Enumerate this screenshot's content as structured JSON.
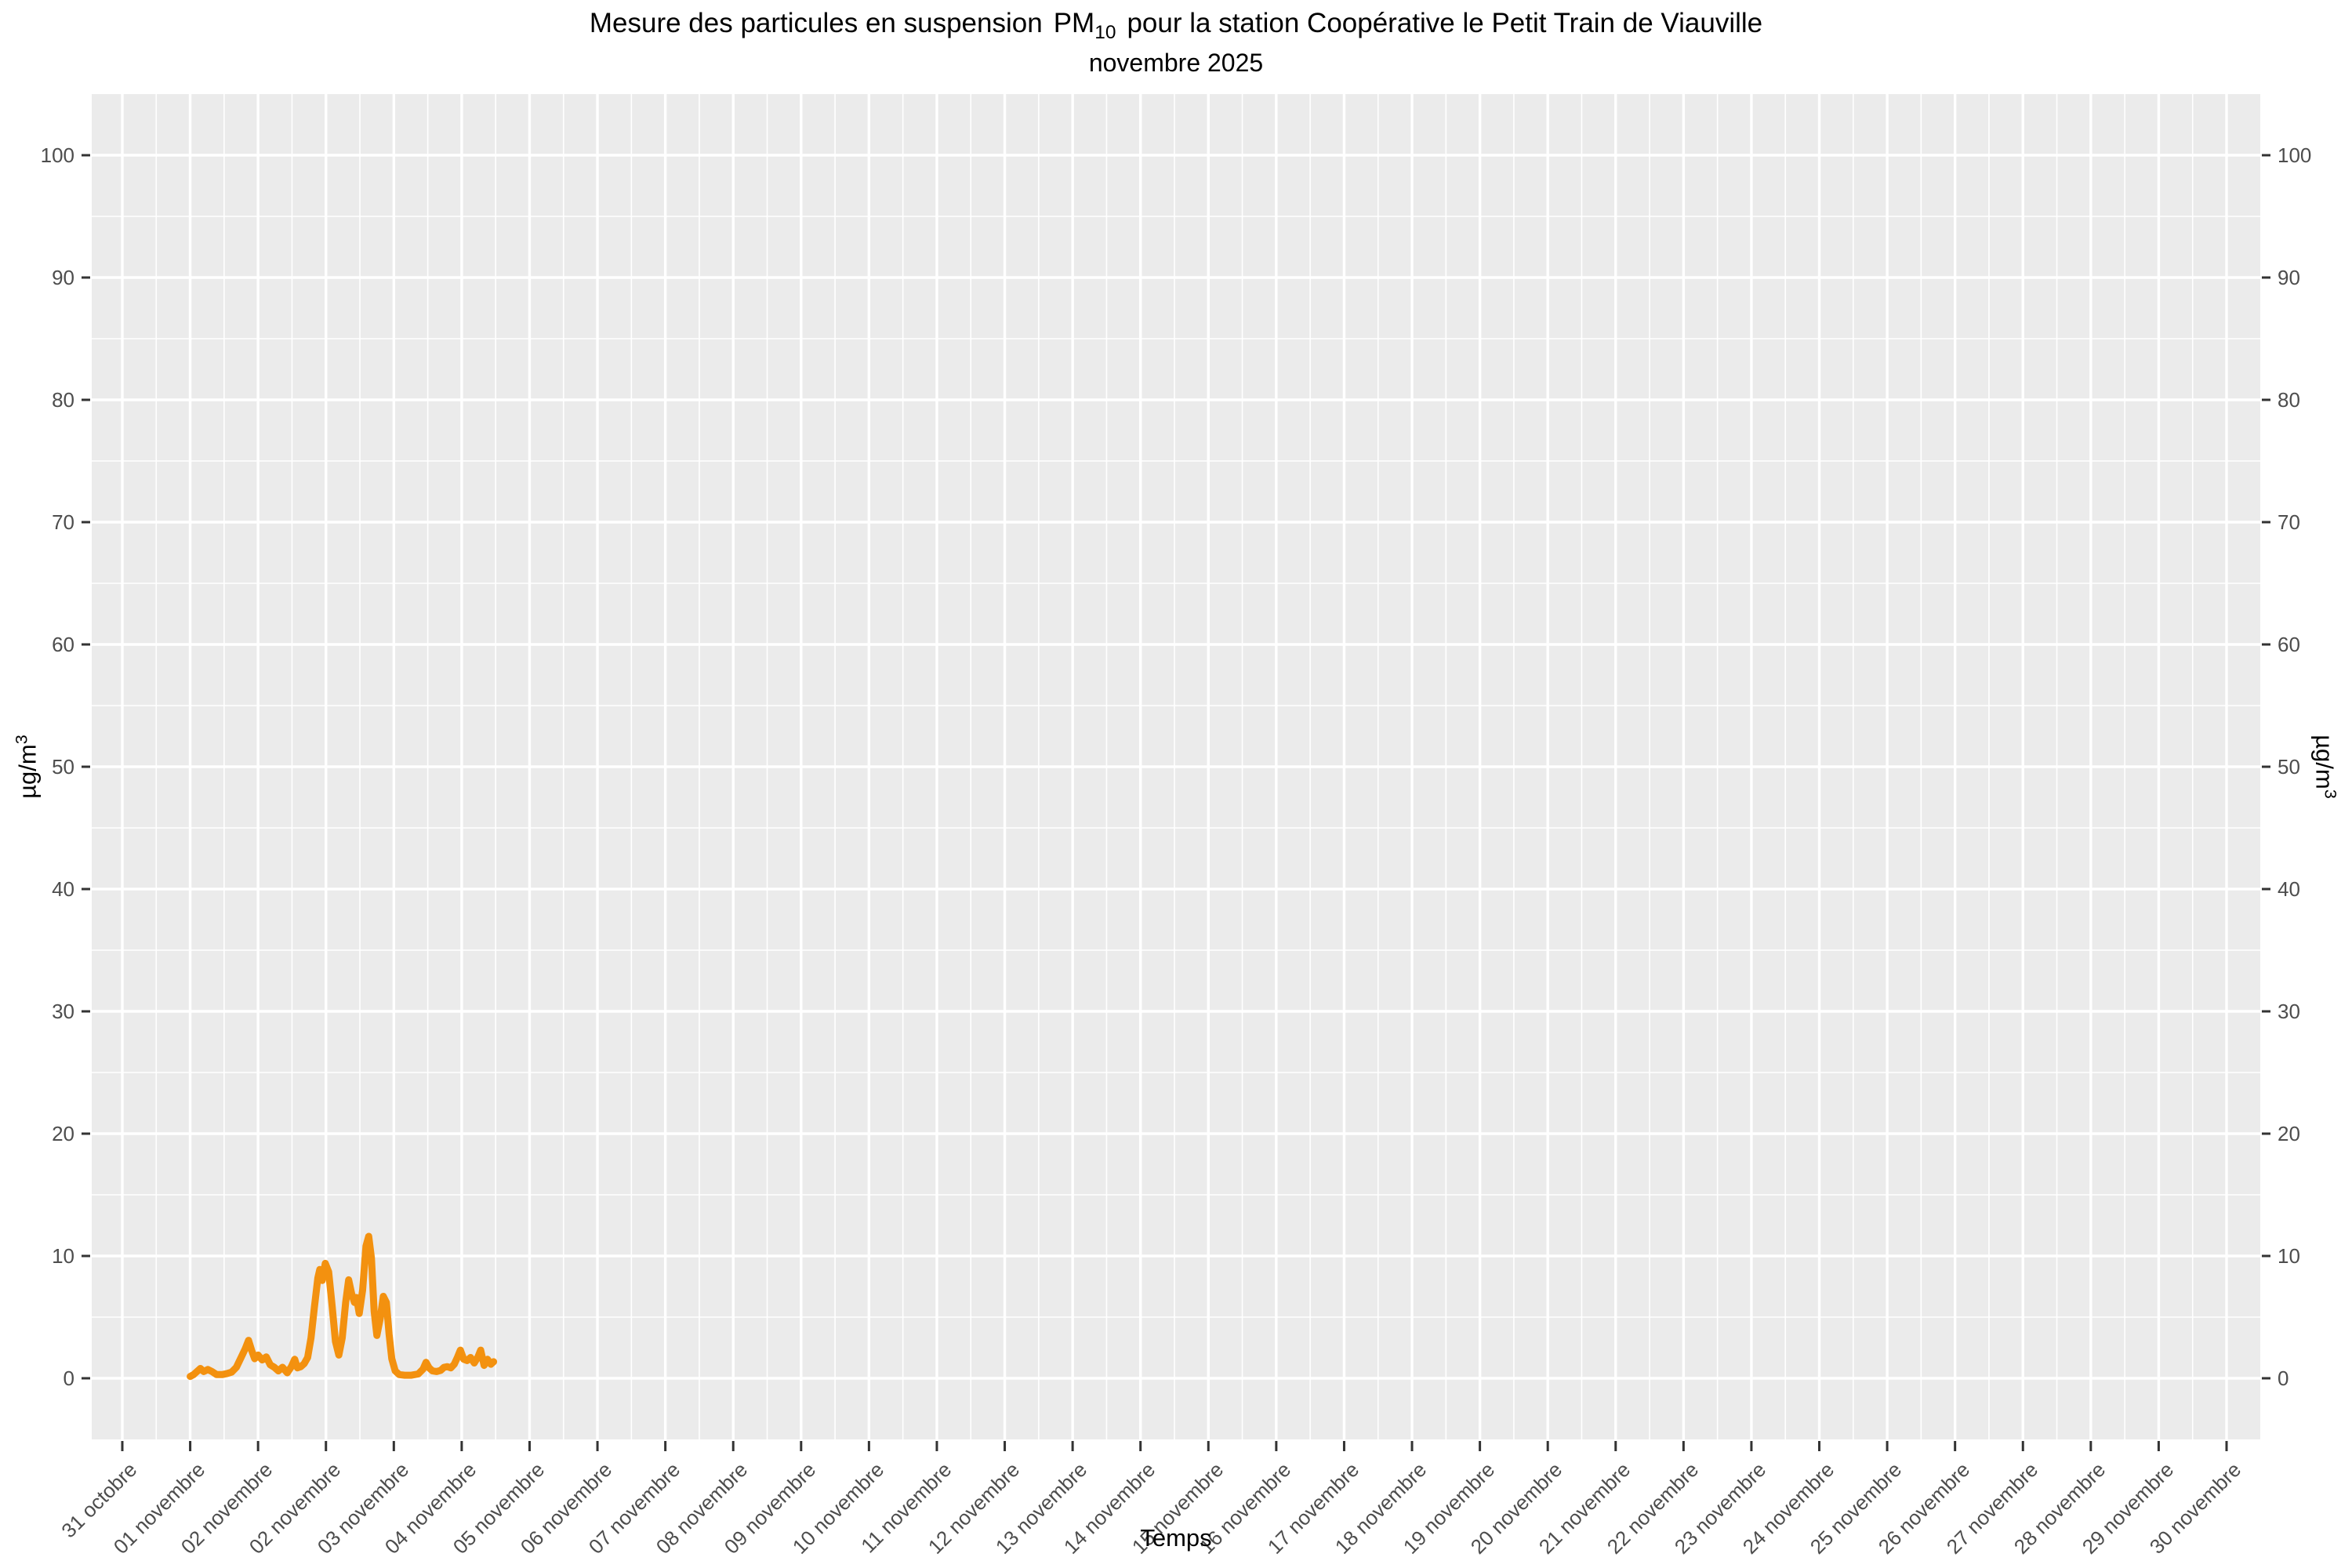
{
  "title": {
    "prefix": "Mesure des particules en suspension",
    "pm": "PM",
    "pm_sub": "10",
    "suffix": "pour la station Coopérative le Petit Train de Viauville",
    "subtitle": "novembre 2025"
  },
  "axes": {
    "x_title": "Temps",
    "y_title_base": "µg/m",
    "y_title_sup": "3"
  },
  "colors": {
    "panel_bg": "#EBEBEB",
    "grid": "#FFFFFF",
    "axis_text": "#4D4D4D",
    "tick_mark": "#333333",
    "title_text": "#000000",
    "line": "#F3910F"
  },
  "chart_data": {
    "type": "line",
    "title": "Mesure des particules en suspension PM10 pour la station Coopérative le Petit Train de Viauville",
    "subtitle": "novembre 2025",
    "xlabel": "Temps",
    "ylabel": "µg/m3",
    "station": "Coopérative le Petit Train de Viauville",
    "ylim": [
      0,
      100
    ],
    "y_major_ticks": [
      0,
      10,
      20,
      30,
      40,
      50,
      60,
      70,
      80,
      90,
      100
    ],
    "y_minor_step": 5,
    "grid": true,
    "panel_background": "#EBEBEB",
    "x_tick_labels": [
      "31 octobre",
      "01 novembre",
      "02 novembre",
      "02 novembre",
      "03 novembre",
      "04 novembre",
      "05 novembre",
      "06 novembre",
      "07 novembre",
      "08 novembre",
      "09 novembre",
      "10 novembre",
      "11 novembre",
      "12 novembre",
      "13 novembre",
      "14 novembre",
      "15 novembre",
      "16 novembre",
      "17 novembre",
      "18 novembre",
      "19 novembre",
      "20 novembre",
      "21 novembre",
      "22 novembre",
      "23 novembre",
      "24 novembre",
      "25 novembre",
      "26 novembre",
      "27 novembre",
      "28 novembre",
      "29 novembre",
      "30 novembre"
    ],
    "series": [
      {
        "name": "PM10",
        "color": "#F3910F",
        "x_unit": "x-axis tick index (0 = 31 octobre tick, 1 = 01 novembre tick, ...)",
        "y_unit": "µg/m3",
        "points": [
          [
            1.0,
            0.15
          ],
          [
            1.05,
            0.3
          ],
          [
            1.1,
            0.55
          ],
          [
            1.15,
            0.8
          ],
          [
            1.2,
            0.55
          ],
          [
            1.26,
            0.72
          ],
          [
            1.32,
            0.55
          ],
          [
            1.39,
            0.3
          ],
          [
            1.47,
            0.3
          ],
          [
            1.54,
            0.38
          ],
          [
            1.61,
            0.5
          ],
          [
            1.68,
            0.9
          ],
          [
            1.75,
            1.7
          ],
          [
            1.81,
            2.4
          ],
          [
            1.86,
            3.1
          ],
          [
            1.91,
            2.2
          ],
          [
            1.95,
            1.6
          ],
          [
            2.0,
            1.9
          ],
          [
            2.06,
            1.5
          ],
          [
            2.12,
            1.75
          ],
          [
            2.18,
            1.1
          ],
          [
            2.24,
            0.9
          ],
          [
            2.3,
            0.6
          ],
          [
            2.36,
            0.9
          ],
          [
            2.43,
            0.45
          ],
          [
            2.49,
            0.95
          ],
          [
            2.54,
            1.55
          ],
          [
            2.58,
            0.85
          ],
          [
            2.63,
            0.95
          ],
          [
            2.68,
            1.2
          ],
          [
            2.73,
            1.7
          ],
          [
            2.78,
            3.3
          ],
          [
            2.83,
            5.8
          ],
          [
            2.88,
            8.2
          ],
          [
            2.91,
            8.9
          ],
          [
            2.945,
            8.0
          ],
          [
            2.99,
            9.4
          ],
          [
            3.04,
            8.7
          ],
          [
            3.09,
            6.0
          ],
          [
            3.14,
            3.0
          ],
          [
            3.19,
            1.9
          ],
          [
            3.24,
            3.3
          ],
          [
            3.29,
            6.2
          ],
          [
            3.335,
            8.05
          ],
          [
            3.38,
            6.9
          ],
          [
            3.42,
            6.2
          ],
          [
            3.45,
            6.6
          ],
          [
            3.49,
            5.3
          ],
          [
            3.54,
            7.2
          ],
          [
            3.59,
            10.8
          ],
          [
            3.63,
            11.6
          ],
          [
            3.67,
            9.8
          ],
          [
            3.71,
            5.5
          ],
          [
            3.75,
            3.5
          ],
          [
            3.8,
            4.9
          ],
          [
            3.845,
            6.7
          ],
          [
            3.89,
            6.2
          ],
          [
            3.93,
            3.6
          ],
          [
            3.97,
            1.6
          ],
          [
            4.02,
            0.6
          ],
          [
            4.08,
            0.3
          ],
          [
            4.16,
            0.25
          ],
          [
            4.26,
            0.25
          ],
          [
            4.36,
            0.35
          ],
          [
            4.43,
            0.75
          ],
          [
            4.475,
            1.3
          ],
          [
            4.52,
            0.85
          ],
          [
            4.57,
            0.6
          ],
          [
            4.63,
            0.55
          ],
          [
            4.69,
            0.65
          ],
          [
            4.74,
            0.9
          ],
          [
            4.79,
            0.95
          ],
          [
            4.84,
            0.85
          ],
          [
            4.89,
            1.15
          ],
          [
            4.94,
            1.75
          ],
          [
            4.98,
            2.3
          ],
          [
            5.03,
            1.55
          ],
          [
            5.08,
            1.45
          ],
          [
            5.13,
            1.7
          ],
          [
            5.185,
            1.25
          ],
          [
            5.24,
            1.75
          ],
          [
            5.28,
            2.3
          ],
          [
            5.33,
            1.05
          ],
          [
            5.38,
            1.55
          ],
          [
            5.43,
            1.15
          ],
          [
            5.47,
            1.35
          ]
        ]
      }
    ]
  }
}
